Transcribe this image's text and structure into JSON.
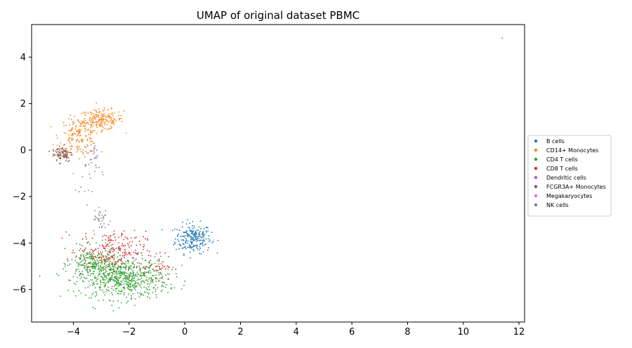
{
  "chart_data": {
    "type": "scatter",
    "title": "UMAP of original dataset PBMC",
    "xlabel": "",
    "ylabel": "",
    "xlim": [
      -5.5,
      12.2
    ],
    "ylim": [
      -7.4,
      5.4
    ],
    "xticks": [
      -4,
      -2,
      0,
      2,
      4,
      6,
      8,
      10,
      12
    ],
    "xtick_labels": [
      "−4",
      "−2",
      "0",
      "2",
      "4",
      "6",
      "8",
      "10",
      "12"
    ],
    "yticks": [
      -6,
      -4,
      -2,
      0,
      2,
      4
    ],
    "ytick_labels": [
      "−6",
      "−4",
      "−2",
      "0",
      "2",
      "4"
    ],
    "grid": false,
    "legend_position": "right-outside",
    "series": [
      {
        "name": "B cells",
        "color": "#1f77b4",
        "clusters": [
          {
            "cx": 0.3,
            "cy": -3.8,
            "sx": 0.32,
            "sy": 0.32,
            "n": 230
          }
        ]
      },
      {
        "name": "CD14+ Monocytes",
        "color": "#ff7f0e",
        "clusters": [
          {
            "cx": -3.0,
            "cy": 1.3,
            "sx": 0.4,
            "sy": 0.22,
            "n": 180
          },
          {
            "cx": -3.8,
            "cy": 0.6,
            "sx": 0.35,
            "sy": 0.4,
            "n": 160
          }
        ]
      },
      {
        "name": "CD4 T cells",
        "color": "#2ca02c",
        "clusters": [
          {
            "cx": -2.2,
            "cy": -5.5,
            "sx": 0.8,
            "sy": 0.45,
            "n": 650
          },
          {
            "cx": -3.3,
            "cy": -4.9,
            "sx": 0.4,
            "sy": 0.35,
            "n": 180
          }
        ]
      },
      {
        "name": "CD8 T cells",
        "color": "#d62728",
        "clusters": [
          {
            "cx": -2.6,
            "cy": -4.3,
            "sx": 0.6,
            "sy": 0.4,
            "n": 200
          },
          {
            "cx": -1.0,
            "cy": -5.0,
            "sx": 0.3,
            "sy": 0.3,
            "n": 40
          }
        ]
      },
      {
        "name": "Dendritic cells",
        "color": "#9467bd",
        "clusters": [
          {
            "cx": -3.25,
            "cy": -0.2,
            "sx": 0.07,
            "sy": 0.2,
            "n": 14
          }
        ]
      },
      {
        "name": "FCGR3A+ Monocytes",
        "color": "#8c564b",
        "clusters": [
          {
            "cx": -4.4,
            "cy": -0.15,
            "sx": 0.18,
            "sy": 0.18,
            "n": 90
          },
          {
            "cx": -3.4,
            "cy": -4.5,
            "sx": 0.45,
            "sy": 0.5,
            "n": 25
          }
        ]
      },
      {
        "name": "Megakaryocytes",
        "color": "#e377c2",
        "clusters": [
          {
            "cx": 11.4,
            "cy": 4.82,
            "sx": 0.015,
            "sy": 0.015,
            "n": 3
          }
        ]
      },
      {
        "name": "NK cells",
        "color": "#7f7f7f",
        "clusters": [
          {
            "cx": -3.0,
            "cy": -3.0,
            "sx": 0.15,
            "sy": 0.3,
            "n": 35
          },
          {
            "cx": -3.4,
            "cy": -0.8,
            "sx": 0.3,
            "sy": 0.6,
            "n": 25
          }
        ]
      }
    ]
  }
}
